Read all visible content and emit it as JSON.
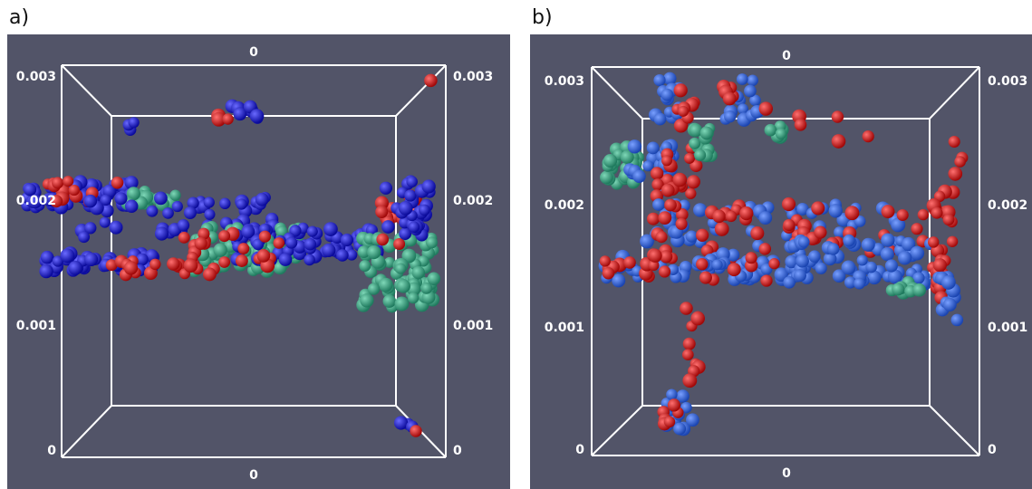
{
  "panels": [
    {
      "label": "a)",
      "top_label": "0",
      "bottom_label": "0",
      "left_ticks": [
        "0.003",
        "0.002",
        "0.001",
        "0"
      ],
      "right_ticks": [
        "0.003",
        "0.002",
        "0.001",
        "0"
      ]
    },
    {
      "label": "b)",
      "top_label": "0",
      "bottom_label": "0",
      "left_ticks": [
        "0.003",
        "0.002",
        "0.001",
        "0"
      ],
      "right_ticks": [
        "0.003",
        "0.002",
        "0.001",
        "0"
      ]
    }
  ]
}
